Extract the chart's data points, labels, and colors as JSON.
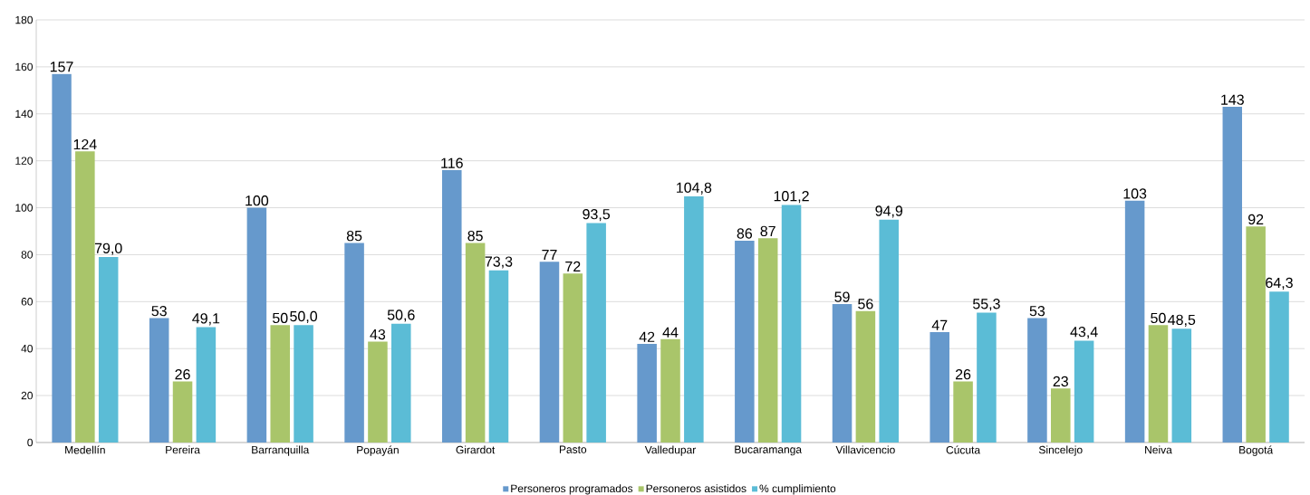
{
  "chart_data": {
    "type": "bar",
    "categories": [
      "Medellín",
      "Pereira",
      "Barranquilla",
      "Popayán",
      "Girardot",
      "Pasto",
      "Valledupar",
      "Bucaramanga",
      "Villavicencio",
      "Cúcuta",
      "Sincelejo",
      "Neiva",
      "Bogotá"
    ],
    "series": [
      {
        "name": "Personeros programados",
        "color": "#6699cc",
        "values": [
          157,
          53,
          100,
          85,
          116,
          77,
          42,
          86,
          59,
          47,
          53,
          103,
          143
        ],
        "value_labels": [
          "157",
          "53",
          "100",
          "85",
          "116",
          "77",
          "42",
          "86",
          "59",
          "47",
          "53",
          "103",
          "143"
        ]
      },
      {
        "name": "Personeros asistidos",
        "color": "#a9c56a",
        "values": [
          124,
          26,
          50,
          43,
          85,
          72,
          44,
          87,
          56,
          26,
          23,
          50,
          92
        ],
        "value_labels": [
          "124",
          "26",
          "50",
          "43",
          "85",
          "72",
          "44",
          "87",
          "56",
          "26",
          "23",
          "50",
          "92"
        ]
      },
      {
        "name": "% cumplimiento",
        "color": "#5bbcd6",
        "values": [
          79.0,
          49.1,
          50.0,
          50.6,
          73.3,
          93.5,
          104.8,
          101.2,
          94.9,
          55.3,
          43.4,
          48.5,
          64.3
        ],
        "value_labels": [
          "79,0",
          "49,1",
          "50,0",
          "50,6",
          "73,3",
          "93,5",
          "104,8",
          "101,2",
          "94,9",
          "55,3",
          "43,4",
          "48,5",
          "64,3"
        ]
      }
    ],
    "ylim": [
      0,
      180
    ],
    "yticks": [
      0,
      20,
      40,
      60,
      80,
      100,
      120,
      140,
      160,
      180
    ],
    "grid": "y",
    "legend": "bottom"
  }
}
